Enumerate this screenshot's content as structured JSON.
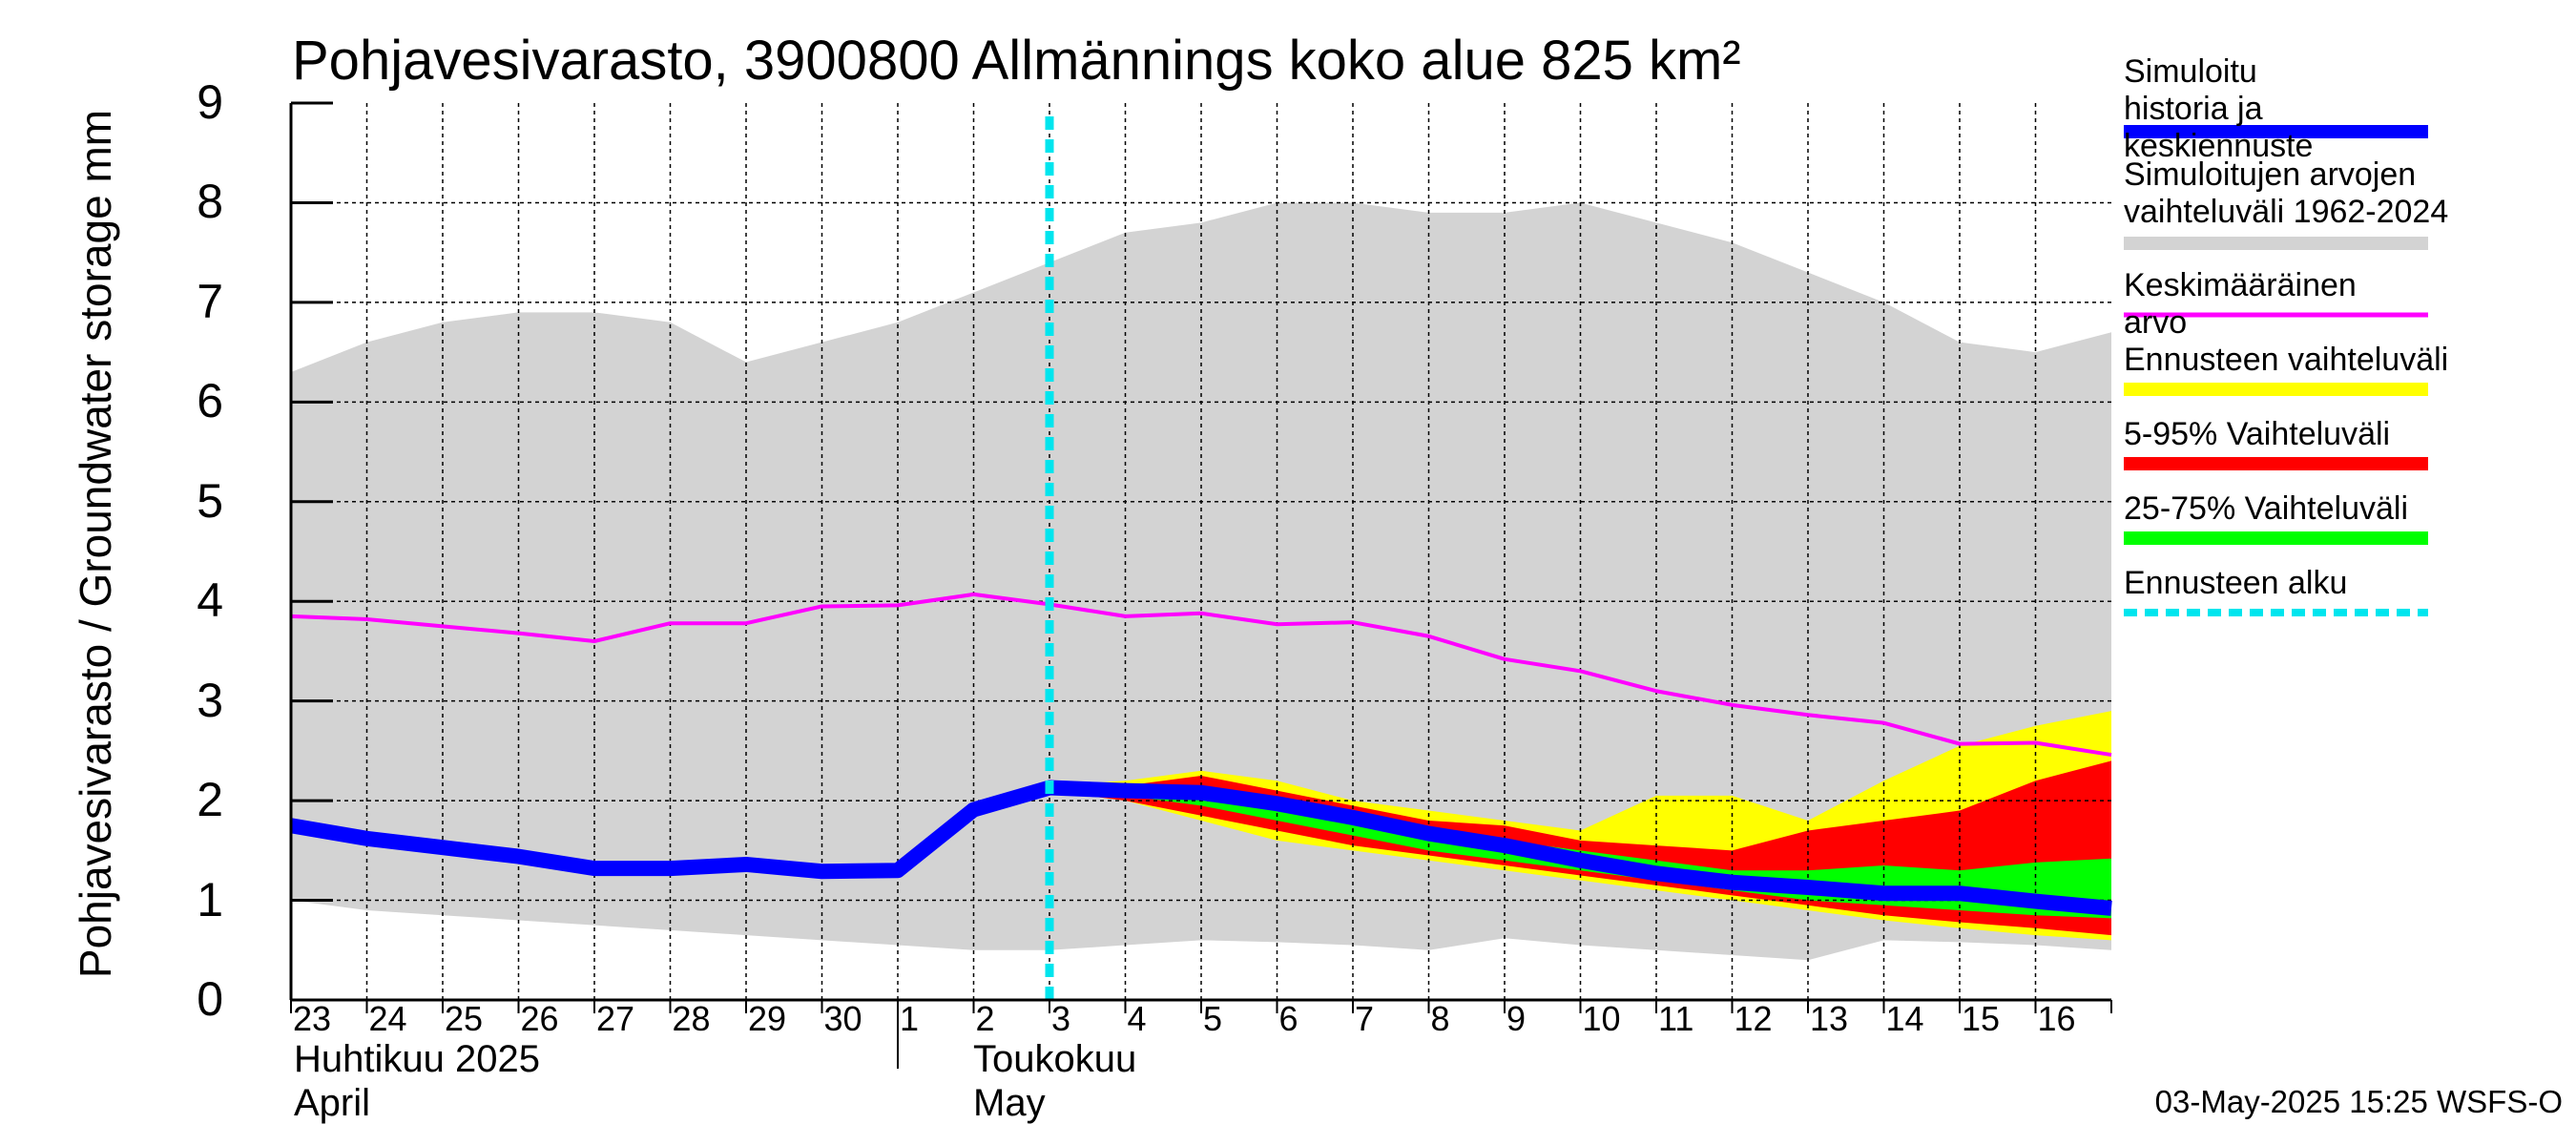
{
  "title": "Pohjavesivarasto, 3900800 Allmännings koko alue 825 km²",
  "ylabel": "Pohjavesivarasto / Groundwater storage   mm",
  "timestamp": "03-May-2025 15:25 WSFS-O",
  "months": {
    "april": {
      "line1": "Huhtikuu  2025",
      "line2": "April"
    },
    "may": {
      "line1": "Toukokuu",
      "line2": "May"
    }
  },
  "legend": [
    {
      "label": "Simuloitu historia ja\nkeskiennuste",
      "color": "#0000ff"
    },
    {
      "label": "Simuloitujen arvojen\nvaihteluväli 1962-2024",
      "color": "#d3d3d3"
    },
    {
      "label": "Keskimääräinen arvo",
      "color": "#ff00ff"
    },
    {
      "label": "Ennusteen vaihteluväli",
      "color": "#ffff00"
    },
    {
      "label": "5-95% Vaihteluväli",
      "color": "#ff0000"
    },
    {
      "label": "25-75% Vaihteluväli",
      "color": "#00ff00"
    },
    {
      "label": "Ennusteen alku",
      "color": "#00e5ee"
    }
  ],
  "chart_data": {
    "type": "area",
    "title": "Pohjavesivarasto, 3900800 Allmännings koko alue 825 km²",
    "ylabel": "Pohjavesivarasto / Groundwater storage   mm",
    "ylim": [
      0,
      9
    ],
    "yticks": [
      0,
      1,
      2,
      3,
      4,
      5,
      6,
      7,
      8,
      9
    ],
    "xlim": [
      "2025-04-23",
      "2025-05-17"
    ],
    "x_tick_labels": [
      "23",
      "24",
      "25",
      "26",
      "27",
      "28",
      "29",
      "30",
      "1",
      "2",
      "3",
      "4",
      "5",
      "6",
      "7",
      "8",
      "9",
      "10",
      "11",
      "12",
      "13",
      "14",
      "15",
      "16"
    ],
    "grid": true,
    "forecast_start": "2025-05-03",
    "series": [
      {
        "name": "Simuloitujen arvojen vaihteluväli 1962-2024",
        "kind": "band",
        "x": [
          "2025-04-23",
          "2025-04-24",
          "2025-04-25",
          "2025-04-26",
          "2025-04-27",
          "2025-04-28",
          "2025-04-29",
          "2025-04-30",
          "2025-05-01",
          "2025-05-02",
          "2025-05-03",
          "2025-05-04",
          "2025-05-05",
          "2025-05-06",
          "2025-05-07",
          "2025-05-08",
          "2025-05-09",
          "2025-05-10",
          "2025-05-11",
          "2025-05-12",
          "2025-05-13",
          "2025-05-14",
          "2025-05-15",
          "2025-05-16",
          "2025-05-17"
        ],
        "upper": [
          6.3,
          6.6,
          6.8,
          6.9,
          6.9,
          6.8,
          6.4,
          6.6,
          6.8,
          7.1,
          7.4,
          7.7,
          7.8,
          8.0,
          8.0,
          7.9,
          7.9,
          8.0,
          7.8,
          7.6,
          7.3,
          7.0,
          6.6,
          6.5,
          6.7
        ],
        "lower": [
          1.0,
          0.9,
          0.85,
          0.8,
          0.75,
          0.7,
          0.65,
          0.6,
          0.55,
          0.5,
          0.5,
          0.55,
          0.6,
          0.58,
          0.55,
          0.5,
          0.62,
          0.55,
          0.5,
          0.45,
          0.4,
          0.6,
          0.58,
          0.55,
          0.5
        ]
      },
      {
        "name": "Ennusteen vaihteluväli",
        "kind": "band",
        "x": [
          "2025-05-03",
          "2025-05-04",
          "2025-05-05",
          "2025-05-06",
          "2025-05-07",
          "2025-05-08",
          "2025-05-09",
          "2025-05-10",
          "2025-05-11",
          "2025-05-12",
          "2025-05-13",
          "2025-05-14",
          "2025-05-15",
          "2025-05-16",
          "2025-05-17"
        ],
        "upper": [
          2.15,
          2.2,
          2.3,
          2.2,
          2.0,
          1.9,
          1.8,
          1.7,
          2.05,
          2.05,
          1.8,
          2.2,
          2.55,
          2.75,
          2.9
        ],
        "lower": [
          2.1,
          2.0,
          1.8,
          1.6,
          1.5,
          1.4,
          1.3,
          1.2,
          1.1,
          1.0,
          0.9,
          0.8,
          0.72,
          0.65,
          0.6
        ]
      },
      {
        "name": "5-95% Vaihteluväli",
        "kind": "band",
        "x": [
          "2025-05-03",
          "2025-05-04",
          "2025-05-05",
          "2025-05-06",
          "2025-05-07",
          "2025-05-08",
          "2025-05-09",
          "2025-05-10",
          "2025-05-11",
          "2025-05-12",
          "2025-05-13",
          "2025-05-14",
          "2025-05-15",
          "2025-05-16",
          "2025-05-17"
        ],
        "upper": [
          2.15,
          2.15,
          2.25,
          2.1,
          1.95,
          1.8,
          1.75,
          1.6,
          1.55,
          1.5,
          1.7,
          1.8,
          1.9,
          2.2,
          2.4
        ],
        "lower": [
          2.1,
          2.0,
          1.85,
          1.7,
          1.55,
          1.45,
          1.35,
          1.25,
          1.15,
          1.05,
          0.95,
          0.85,
          0.78,
          0.72,
          0.65
        ]
      },
      {
        "name": "25-75% Vaihteluväli",
        "kind": "band",
        "x": [
          "2025-05-03",
          "2025-05-04",
          "2025-05-05",
          "2025-05-06",
          "2025-05-07",
          "2025-05-08",
          "2025-05-09",
          "2025-05-10",
          "2025-05-11",
          "2025-05-12",
          "2025-05-13",
          "2025-05-14",
          "2025-05-15",
          "2025-05-16",
          "2025-05-17"
        ],
        "upper": [
          2.12,
          2.1,
          2.15,
          2.0,
          1.85,
          1.7,
          1.6,
          1.5,
          1.4,
          1.3,
          1.3,
          1.35,
          1.3,
          1.38,
          1.42
        ],
        "lower": [
          2.1,
          2.05,
          1.95,
          1.8,
          1.65,
          1.5,
          1.4,
          1.3,
          1.2,
          1.1,
          1.0,
          0.95,
          0.9,
          0.85,
          0.82
        ]
      },
      {
        "name": "Keskimääräinen arvo",
        "kind": "line",
        "x": [
          "2025-04-23",
          "2025-04-24",
          "2025-04-25",
          "2025-04-26",
          "2025-04-27",
          "2025-04-28",
          "2025-04-29",
          "2025-04-30",
          "2025-05-01",
          "2025-05-02",
          "2025-05-03",
          "2025-05-04",
          "2025-05-05",
          "2025-05-06",
          "2025-05-07",
          "2025-05-08",
          "2025-05-09",
          "2025-05-10",
          "2025-05-11",
          "2025-05-12",
          "2025-05-13",
          "2025-05-14",
          "2025-05-15",
          "2025-05-16",
          "2025-05-17"
        ],
        "y": [
          3.85,
          3.82,
          3.75,
          3.68,
          3.6,
          3.78,
          3.78,
          3.95,
          3.96,
          4.07,
          3.97,
          3.85,
          3.88,
          3.77,
          3.79,
          3.65,
          3.42,
          3.3,
          3.1,
          2.96,
          2.86,
          2.78,
          2.57,
          2.58,
          2.46
        ]
      },
      {
        "name": "Simuloitu historia ja keskiennuste",
        "kind": "line",
        "x": [
          "2025-04-23",
          "2025-04-24",
          "2025-04-25",
          "2025-04-26",
          "2025-04-27",
          "2025-04-28",
          "2025-04-29",
          "2025-04-30",
          "2025-05-01",
          "2025-05-02",
          "2025-05-03",
          "2025-05-04",
          "2025-05-05",
          "2025-05-06",
          "2025-05-07",
          "2025-05-08",
          "2025-05-09",
          "2025-05-10",
          "2025-05-11",
          "2025-05-12",
          "2025-05-13",
          "2025-05-14",
          "2025-05-15",
          "2025-05-16",
          "2025-05-17"
        ],
        "y": [
          1.75,
          1.62,
          1.53,
          1.44,
          1.32,
          1.32,
          1.36,
          1.29,
          1.3,
          1.91,
          2.13,
          2.1,
          2.08,
          1.97,
          1.83,
          1.67,
          1.55,
          1.4,
          1.27,
          1.18,
          1.13,
          1.07,
          1.07,
          0.99,
          0.92
        ]
      }
    ]
  }
}
